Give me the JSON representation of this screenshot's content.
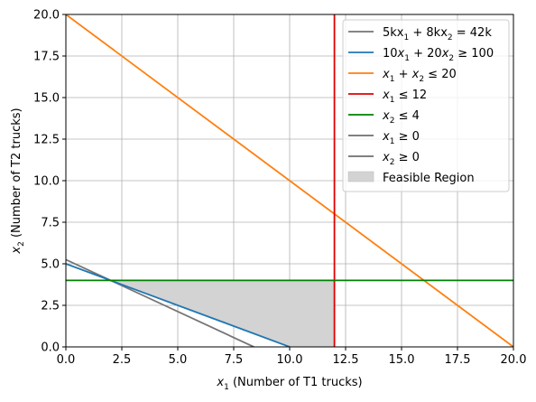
{
  "chart_data": {
    "type": "line",
    "title": "",
    "xlabel_parts": [
      {
        "t": "x",
        "style": "italic"
      },
      {
        "t": "1",
        "style": "sub"
      },
      {
        "t": " (Number of T1 trucks)",
        "style": "normal"
      }
    ],
    "ylabel_parts": [
      {
        "t": "x",
        "style": "italic"
      },
      {
        "t": "2",
        "style": "sub"
      },
      {
        "t": " (Number of T2 trucks)",
        "style": "normal"
      }
    ],
    "xlim": [
      0,
      20
    ],
    "ylim": [
      0,
      20
    ],
    "xticks": [
      0,
      2.5,
      5,
      7.5,
      10,
      12.5,
      15,
      17.5,
      20
    ],
    "xtick_labels": [
      "0.0",
      "2.5",
      "5.0",
      "7.5",
      "10.0",
      "12.5",
      "15.0",
      "17.5",
      "20.0"
    ],
    "yticks": [
      0,
      2.5,
      5,
      7.5,
      10,
      12.5,
      15,
      17.5,
      20
    ],
    "ytick_labels": [
      "0.0",
      "2.5",
      "5.0",
      "7.5",
      "10.0",
      "12.5",
      "15.0",
      "17.5",
      "20.0"
    ],
    "grid": true,
    "legend_position": "top-right",
    "series": [
      {
        "name_parts": [
          {
            "t": "5kx",
            "style": "normal"
          },
          {
            "t": "1",
            "style": "sub"
          },
          {
            "t": " + 8kx",
            "style": "normal"
          },
          {
            "t": "2",
            "style": "sub"
          },
          {
            "t": " = 42k",
            "style": "normal"
          }
        ],
        "color": "#757575",
        "width": 1.8,
        "x": [
          0,
          8.4
        ],
        "y": [
          5.25,
          0
        ]
      },
      {
        "name_parts": [
          {
            "t": "10",
            "style": "normal"
          },
          {
            "t": "x",
            "style": "italic"
          },
          {
            "t": "1",
            "style": "sub"
          },
          {
            "t": " + 20",
            "style": "normal"
          },
          {
            "t": "x",
            "style": "italic"
          },
          {
            "t": "2",
            "style": "sub"
          },
          {
            "t": " ≥ 100",
            "style": "normal"
          }
        ],
        "color": "#1f77b4",
        "width": 1.8,
        "x": [
          0,
          10
        ],
        "y": [
          5,
          0
        ]
      },
      {
        "name_parts": [
          {
            "t": "x",
            "style": "italic"
          },
          {
            "t": "1",
            "style": "sub"
          },
          {
            "t": " + ",
            "style": "normal"
          },
          {
            "t": "x",
            "style": "italic"
          },
          {
            "t": "2",
            "style": "sub"
          },
          {
            "t": " ≤ 20",
            "style": "normal"
          }
        ],
        "color": "#ff7f0e",
        "width": 1.8,
        "x": [
          0,
          20
        ],
        "y": [
          20,
          0
        ]
      },
      {
        "name_parts": [
          {
            "t": "x",
            "style": "italic"
          },
          {
            "t": "1",
            "style": "sub"
          },
          {
            "t": " ≤ 12",
            "style": "normal"
          }
        ],
        "color": "#e00000",
        "width": 1.8,
        "x": [
          12,
          12
        ],
        "y": [
          0,
          20
        ]
      },
      {
        "name_parts": [
          {
            "t": "x",
            "style": "italic"
          },
          {
            "t": "2",
            "style": "sub"
          },
          {
            "t": " ≤ 4",
            "style": "normal"
          }
        ],
        "color": "#008000",
        "width": 1.8,
        "x": [
          0,
          20
        ],
        "y": [
          4,
          4
        ]
      },
      {
        "name_parts": [
          {
            "t": "x",
            "style": "italic"
          },
          {
            "t": "1",
            "style": "sub"
          },
          {
            "t": " ≥ 0",
            "style": "normal"
          }
        ],
        "color": "#000000",
        "width": 1,
        "x": [
          0,
          0
        ],
        "y": [
          0,
          20
        ]
      },
      {
        "name_parts": [
          {
            "t": "x",
            "style": "italic"
          },
          {
            "t": "2",
            "style": "sub"
          },
          {
            "t": " ≥ 0",
            "style": "normal"
          }
        ],
        "color": "#000000",
        "width": 1,
        "x": [
          0,
          20
        ],
        "y": [
          0,
          0
        ]
      }
    ],
    "feasible_region": {
      "name": "Feasible Region",
      "color": "#d3d3d3",
      "x": [
        2,
        12,
        12,
        10
      ],
      "y": [
        4,
        4,
        0,
        0
      ]
    }
  }
}
